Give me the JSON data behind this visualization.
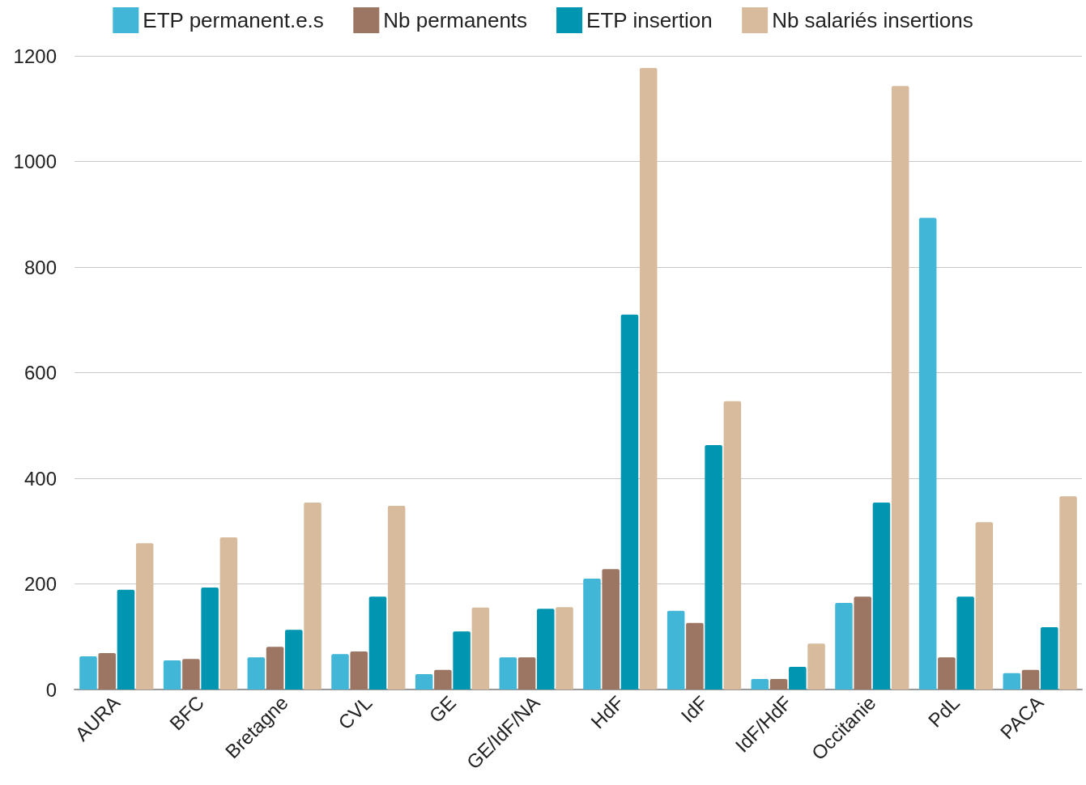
{
  "chart_data": {
    "type": "bar",
    "categories": [
      "AURA",
      "BFC",
      "Bretagne",
      "CVL",
      "GE",
      "GE/IdF/NA",
      "HdF",
      "IdF",
      "IdF/HdF",
      "Occitanie",
      "PdL",
      "PACA"
    ],
    "series": [
      {
        "name": "ETP permanent.e.s",
        "color": "#41b6d6",
        "values": [
          63,
          55,
          61,
          67,
          29,
          61,
          210,
          149,
          20,
          164,
          893,
          31
        ]
      },
      {
        "name": "Nb permanents",
        "color": "#9c7663",
        "values": [
          69,
          58,
          81,
          72,
          37,
          61,
          228,
          126,
          20,
          176,
          61,
          37
        ]
      },
      {
        "name": "ETP insertion",
        "color": "#0095b0",
        "values": [
          189,
          193,
          113,
          176,
          110,
          153,
          710,
          463,
          43,
          354,
          176,
          118
        ]
      },
      {
        "name": "Nb salariés insertions",
        "color": "#d8bb9c",
        "values": [
          277,
          288,
          354,
          348,
          155,
          156,
          1177,
          546,
          87,
          1143,
          317,
          366
        ]
      }
    ],
    "ylim": [
      0,
      1200
    ],
    "yticks": [
      0,
      200,
      400,
      600,
      800,
      1000,
      1200
    ],
    "grid": "y",
    "legend": "top"
  }
}
